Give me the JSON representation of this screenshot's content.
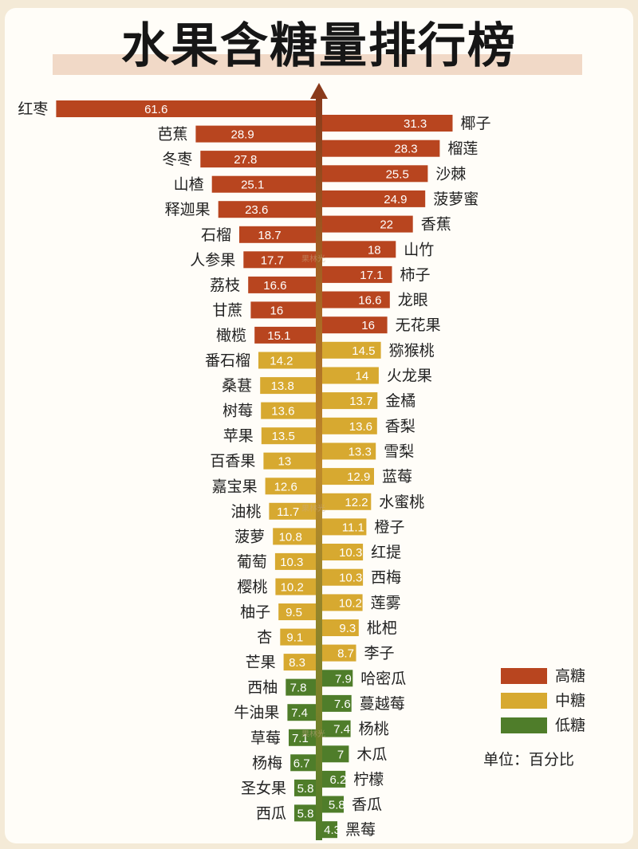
{
  "title": "水果含糖量排行榜",
  "legend": [
    {
      "label": "高糖",
      "color": "#b8451f"
    },
    {
      "label": "中糖",
      "color": "#d7a930"
    },
    {
      "label": "低糖",
      "color": "#4f7d2a"
    }
  ],
  "unit": "单位：百分比",
  "watermark": "果林光",
  "chart_data": {
    "type": "bar",
    "orientation": "horizontal-diverging",
    "xlim": [
      0,
      65
    ],
    "colors": {
      "high": "#b8451f",
      "mid": "#d7a930",
      "low": "#4f7d2a"
    },
    "series": [
      {
        "side": "left",
        "items": [
          {
            "name": "红枣",
            "value": 61.6,
            "group": "high"
          },
          {
            "name": "芭蕉",
            "value": 28.9,
            "group": "high"
          },
          {
            "name": "冬枣",
            "value": 27.8,
            "group": "high"
          },
          {
            "name": "山楂",
            "value": 25.1,
            "group": "high"
          },
          {
            "name": "释迦果",
            "value": 23.6,
            "group": "high"
          },
          {
            "name": "石榴",
            "value": 18.7,
            "group": "high"
          },
          {
            "name": "人参果",
            "value": 17.7,
            "group": "high"
          },
          {
            "name": "荔枝",
            "value": 16.6,
            "group": "high"
          },
          {
            "name": "甘蔗",
            "value": 16,
            "group": "high"
          },
          {
            "name": "橄榄",
            "value": 15.1,
            "group": "high"
          },
          {
            "name": "番石榴",
            "value": 14.2,
            "group": "mid"
          },
          {
            "name": "桑葚",
            "value": 13.8,
            "group": "mid"
          },
          {
            "name": "树莓",
            "value": 13.6,
            "group": "mid"
          },
          {
            "name": "苹果",
            "value": 13.5,
            "group": "mid"
          },
          {
            "name": "百香果",
            "value": 13,
            "group": "mid"
          },
          {
            "name": "嘉宝果",
            "value": 12.6,
            "group": "mid"
          },
          {
            "name": "油桃",
            "value": 11.7,
            "group": "mid"
          },
          {
            "name": "菠萝",
            "value": 10.8,
            "group": "mid"
          },
          {
            "name": "葡萄",
            "value": 10.3,
            "group": "mid"
          },
          {
            "name": "樱桃",
            "value": 10.2,
            "group": "mid"
          },
          {
            "name": "柚子",
            "value": 9.5,
            "group": "mid"
          },
          {
            "name": "杏",
            "value": 9.1,
            "group": "mid"
          },
          {
            "name": "芒果",
            "value": 8.3,
            "group": "mid"
          },
          {
            "name": "西柚",
            "value": 7.8,
            "group": "low"
          },
          {
            "name": "牛油果",
            "value": 7.4,
            "group": "low"
          },
          {
            "name": "草莓",
            "value": 7.1,
            "group": "low"
          },
          {
            "name": "杨梅",
            "value": 6.7,
            "group": "low"
          },
          {
            "name": "圣女果",
            "value": 5.8,
            "group": "low"
          },
          {
            "name": "西瓜",
            "value": 5.8,
            "group": "low"
          }
        ]
      },
      {
        "side": "right",
        "items": [
          {
            "name": "椰子",
            "value": 31.3,
            "group": "high"
          },
          {
            "name": "榴莲",
            "value": 28.3,
            "group": "high"
          },
          {
            "name": "沙棘",
            "value": 25.5,
            "group": "high"
          },
          {
            "name": "菠萝蜜",
            "value": 24.9,
            "group": "high"
          },
          {
            "name": "香蕉",
            "value": 22,
            "group": "high"
          },
          {
            "name": "山竹",
            "value": 18,
            "group": "high"
          },
          {
            "name": "柿子",
            "value": 17.1,
            "group": "high"
          },
          {
            "name": "龙眼",
            "value": 16.6,
            "group": "high"
          },
          {
            "name": "无花果",
            "value": 16,
            "group": "high"
          },
          {
            "name": "猕猴桃",
            "value": 14.5,
            "group": "mid"
          },
          {
            "name": "火龙果",
            "value": 14,
            "group": "mid"
          },
          {
            "name": "金橘",
            "value": 13.7,
            "group": "mid"
          },
          {
            "name": "香梨",
            "value": 13.6,
            "group": "mid"
          },
          {
            "name": "雪梨",
            "value": 13.3,
            "group": "mid"
          },
          {
            "name": "蓝莓",
            "value": 12.9,
            "group": "mid"
          },
          {
            "name": "水蜜桃",
            "value": 12.2,
            "group": "mid"
          },
          {
            "name": "橙子",
            "value": 11.1,
            "group": "mid"
          },
          {
            "name": "红提",
            "value": 10.3,
            "group": "mid"
          },
          {
            "name": "西梅",
            "value": 10.3,
            "group": "mid"
          },
          {
            "name": "莲雾",
            "value": 10.2,
            "group": "mid"
          },
          {
            "name": "枇杷",
            "value": 9.3,
            "group": "mid"
          },
          {
            "name": "李子",
            "value": 8.7,
            "group": "mid"
          },
          {
            "name": "哈密瓜",
            "value": 7.9,
            "group": "low"
          },
          {
            "name": "蔓越莓",
            "value": 7.6,
            "group": "low"
          },
          {
            "name": "杨桃",
            "value": 7.4,
            "group": "low"
          },
          {
            "name": "木瓜",
            "value": 7,
            "group": "low"
          },
          {
            "name": "柠檬",
            "value": 6.2,
            "group": "low"
          },
          {
            "name": "香瓜",
            "value": 5.8,
            "group": "low"
          },
          {
            "name": "黑莓",
            "value": 4.3,
            "group": "low"
          }
        ]
      }
    ]
  }
}
